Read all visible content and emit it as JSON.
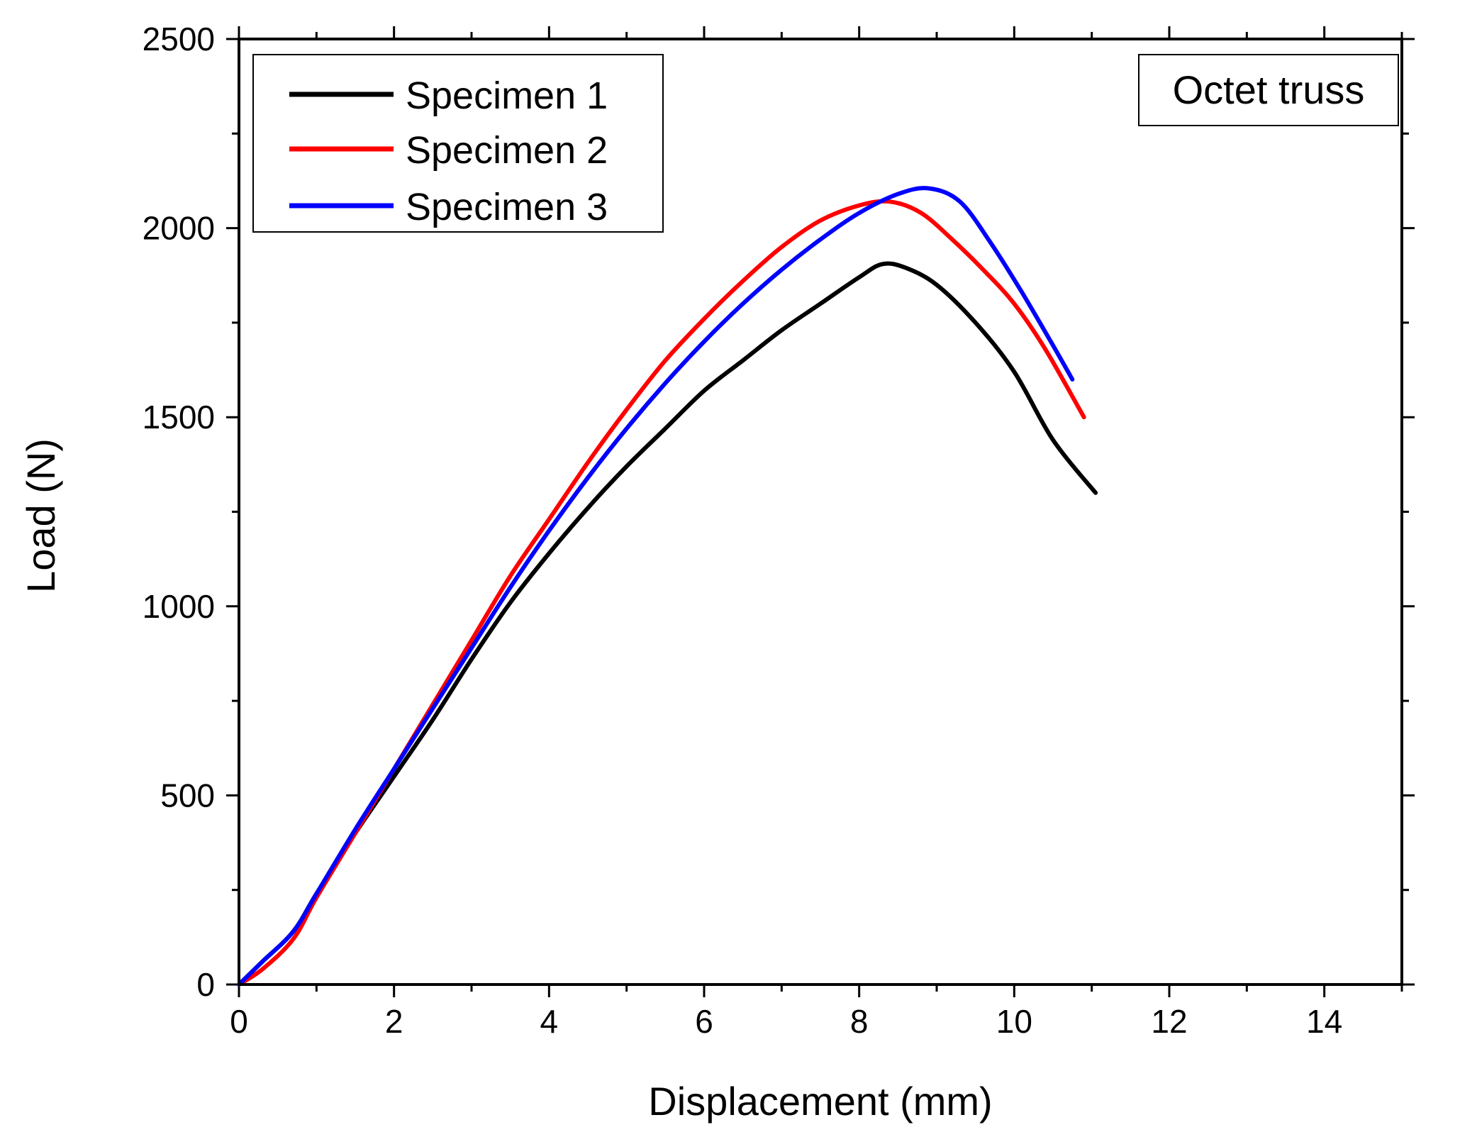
{
  "chart_data": {
    "type": "line",
    "title": "",
    "xlabel": "Displacement (mm)",
    "ylabel": "Load (N)",
    "xlim": [
      0,
      15
    ],
    "ylim": [
      0,
      2500
    ],
    "xticks": [
      0,
      2,
      4,
      6,
      8,
      10,
      12,
      14
    ],
    "yticks": [
      0,
      500,
      1000,
      1500,
      2000,
      2500
    ],
    "xminor_step": 1,
    "yminor_step": 250,
    "grid": false,
    "legend_position": "top-left",
    "annotation": "Octet truss",
    "series": [
      {
        "name": "Specimen 1",
        "color": "#000000",
        "x": [
          0,
          0.3,
          0.7,
          1.0,
          1.5,
          2.0,
          2.5,
          3.0,
          3.5,
          4.0,
          4.5,
          5.0,
          5.5,
          6.0,
          6.5,
          7.0,
          7.5,
          8.0,
          8.3,
          8.6,
          9.0,
          9.5,
          10.0,
          10.5,
          11.05
        ],
        "y": [
          0,
          60,
          140,
          240,
          400,
          550,
          700,
          860,
          1010,
          1140,
          1260,
          1370,
          1470,
          1570,
          1650,
          1730,
          1800,
          1870,
          1905,
          1895,
          1850,
          1750,
          1620,
          1440,
          1300
        ]
      },
      {
        "name": "Specimen 2",
        "color": "#ff0000",
        "x": [
          0,
          0.3,
          0.7,
          1.0,
          1.5,
          2.0,
          2.5,
          3.0,
          3.5,
          4.0,
          4.5,
          5.0,
          5.5,
          6.0,
          6.5,
          7.0,
          7.5,
          8.0,
          8.4,
          8.8,
          9.2,
          9.6,
          10.0,
          10.4,
          10.9
        ],
        "y": [
          0,
          40,
          120,
          230,
          400,
          570,
          740,
          910,
          1080,
          1230,
          1380,
          1520,
          1650,
          1760,
          1860,
          1950,
          2020,
          2060,
          2070,
          2040,
          1970,
          1890,
          1800,
          1680,
          1500
        ]
      },
      {
        "name": "Specimen 3",
        "color": "#0000ff",
        "x": [
          0,
          0.3,
          0.7,
          1.0,
          1.5,
          2.0,
          2.5,
          3.0,
          3.5,
          4.0,
          4.5,
          5.0,
          5.5,
          6.0,
          6.5,
          7.0,
          7.5,
          8.0,
          8.5,
          8.9,
          9.3,
          9.7,
          10.1,
          10.5,
          10.75
        ],
        "y": [
          0,
          60,
          140,
          240,
          410,
          570,
          730,
          890,
          1050,
          1200,
          1340,
          1470,
          1590,
          1700,
          1800,
          1890,
          1970,
          2040,
          2090,
          2105,
          2070,
          1960,
          1830,
          1690,
          1600
        ]
      }
    ]
  }
}
